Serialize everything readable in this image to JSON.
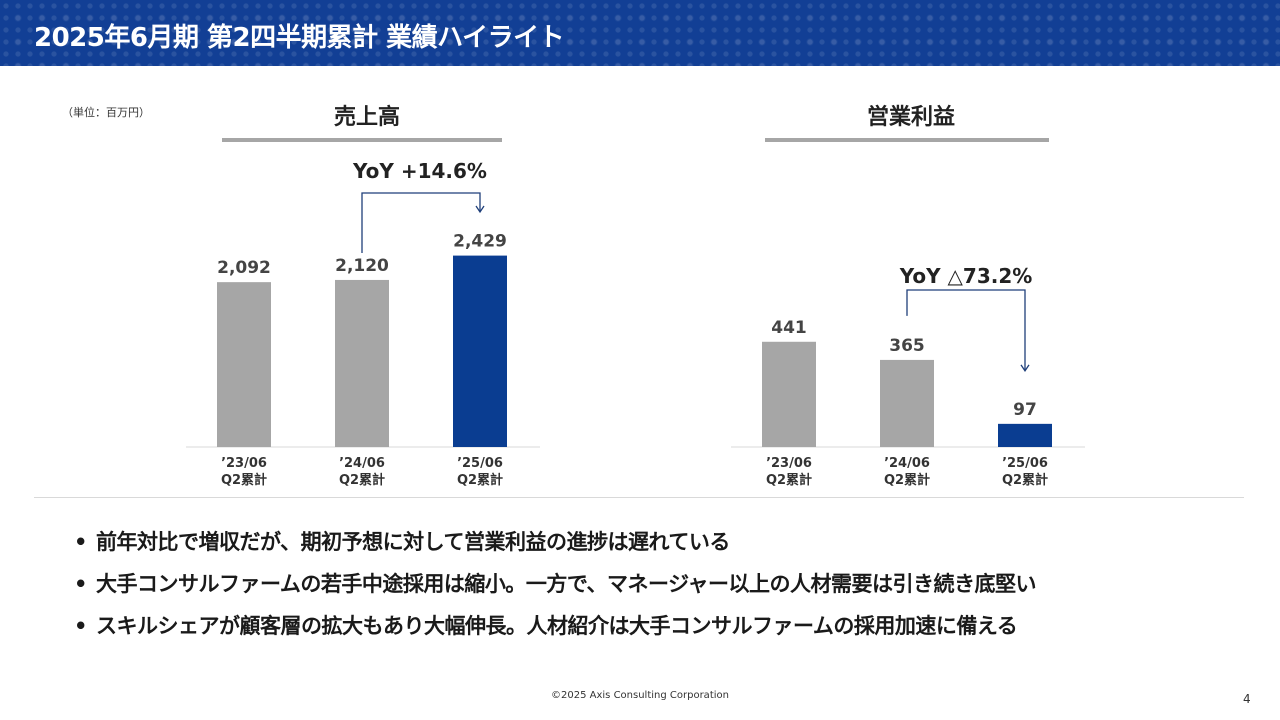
{
  "header": {
    "title": "2025年6月期 第2四半期累計 業績ハイライト"
  },
  "unit_note": "（単位：百万円）",
  "chart_data": [
    {
      "type": "bar",
      "title": "売上高",
      "categories": [
        {
          "line1": "’23/06",
          "line2": "Q2累計"
        },
        {
          "line1": "’24/06",
          "line2": "Q2累計"
        },
        {
          "line1": "’25/06",
          "line2": "Q2累計"
        }
      ],
      "values": [
        2092,
        2120,
        2429
      ],
      "value_labels": [
        "2,092",
        "2,120",
        "2,429"
      ],
      "colors": [
        "#a6a6a6",
        "#a6a6a6",
        "#0a3d91"
      ],
      "annotation": {
        "text": "YoY +14.6%",
        "from_index": 1,
        "to_index": 2
      }
    },
    {
      "type": "bar",
      "title": "営業利益",
      "categories": [
        {
          "line1": "’23/06",
          "line2": "Q2累計"
        },
        {
          "line1": "’24/06",
          "line2": "Q2累計"
        },
        {
          "line1": "’25/06",
          "line2": "Q2累計"
        }
      ],
      "values": [
        441,
        365,
        97
      ],
      "value_labels": [
        "441",
        "365",
        "97"
      ],
      "colors": [
        "#a6a6a6",
        "#a6a6a6",
        "#0a3d91"
      ],
      "annotation": {
        "text": "YoY △73.2%",
        "from_index": 1,
        "to_index": 2
      }
    }
  ],
  "bullets": [
    "前年対比で増収だが、期初予想に対して営業利益の進捗は遅れている",
    "大手コンサルファームの若手中途採用は縮小。一方で、マネージャー以上の人材需要は引き続き底堅い",
    "スキルシェアが顧客層の拡大もあり大幅伸長。人材紹介は大手コンサルファームの採用加速に備える"
  ],
  "bullet_marker": "•",
  "footer": {
    "copyright": "©2025 Axis Consulting Corporation",
    "page_number": "4"
  }
}
